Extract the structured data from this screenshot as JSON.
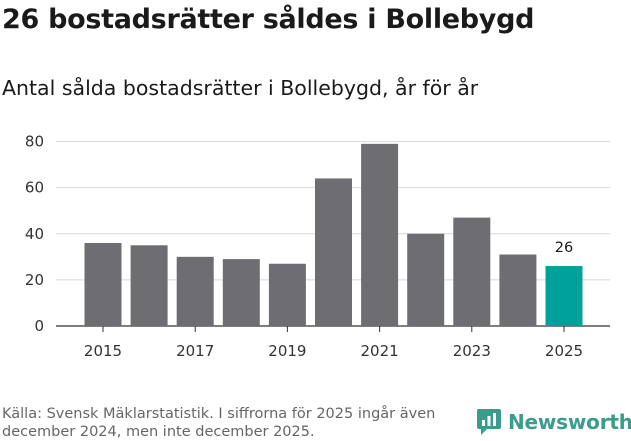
{
  "title": "26 bostadsrätter såldes i Bollebygd",
  "subtitle": "Antal sålda bostadsrätter i Bollebygd, år för år",
  "source": "Källa: Svensk Mäklarstatistik. I siffrorna för 2025 ingår även december 2024, men inte december 2025.",
  "brand": "Newsworthy",
  "colors": {
    "bar": "#6e6d72",
    "highlight": "#00a19a",
    "grid": "#d8d8d8",
    "brand": "#3b9c8c"
  },
  "chart_data": {
    "type": "bar",
    "categories": [
      "2015",
      "2016",
      "2017",
      "2018",
      "2019",
      "2020",
      "2021",
      "2022",
      "2023",
      "2024",
      "2025"
    ],
    "values": [
      36,
      35,
      30,
      29,
      27,
      64,
      79,
      40,
      47,
      31,
      26
    ],
    "highlight_index": 10,
    "data_labels": [
      {
        "index": 10,
        "text": "26"
      }
    ],
    "x_tick_labels": [
      "2015",
      "2017",
      "2019",
      "2021",
      "2023",
      "2025"
    ],
    "y_ticks": [
      0,
      20,
      40,
      60,
      80
    ],
    "ylim": [
      0,
      85
    ],
    "xlabel": "",
    "ylabel": "",
    "grid": true
  }
}
